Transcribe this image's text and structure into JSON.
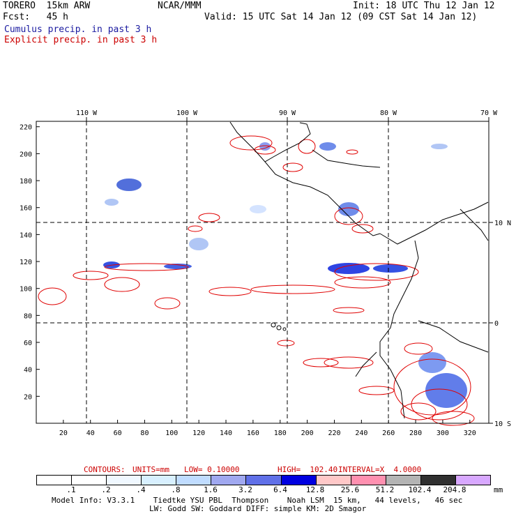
{
  "header": {
    "model": "TORERO  15km ARW",
    "center": "NCAR/MMM",
    "init": "Init: 18 UTC Thu 12 Jan 12",
    "fcst": "Fcst:   45 h",
    "valid": "Valid: 15 UTC Sat 14 Jan 12 (09 CST Sat 14 Jan 12)",
    "field1": "Cumulus precip. in past 3 h",
    "field2": "Explicit precip. in past 3 h"
  },
  "map": {
    "lon_labels": [
      "110 W",
      "100 W",
      "90 W",
      "80 W",
      "70 W"
    ],
    "lat_labels": [
      "10 N",
      "0",
      "10 S"
    ],
    "y_ticks": [
      "220",
      "200",
      "180",
      "160",
      "140",
      "120",
      "100",
      "80",
      "60",
      "40",
      "20"
    ],
    "x_ticks": [
      "20",
      "40",
      "60",
      "80",
      "100",
      "120",
      "140",
      "160",
      "180",
      "200",
      "220",
      "240",
      "260",
      "280",
      "300",
      "320"
    ],
    "x_range": [
      0,
      334
    ],
    "y_range": [
      0,
      224
    ]
  },
  "contours_line": {
    "label": "CONTOURS:",
    "units": "UNITS=mm",
    "low": "LOW= 0.10000",
    "high": "HIGH=  102.40",
    "interval": "INTERVAL=X  4.0000"
  },
  "colorbar": {
    "unit": "mm",
    "labels": [
      ".1",
      ".2",
      ".4",
      ".8",
      "1.6",
      "3.2",
      "6.4",
      "12.8",
      "25.6",
      "51.2",
      "102.4",
      "204.8"
    ],
    "colors": [
      "#ffffff",
      "#ffffff",
      "#f0f8ff",
      "#d8f0ff",
      "#c0dcff",
      "#a0a8f0",
      "#6070e8",
      "#0000e0",
      "#ffc8c8",
      "#ff90b0",
      "#b4b4b4",
      "#303030",
      "#d8a8ff"
    ]
  },
  "footer": {
    "line1": "Model Info: V3.3.1    Tiedtke YSU PBL  Thompson    Noah LSM  15 km,   44 levels,   46 sec",
    "line2": "LW: Godd SW: Goddard DIFF: simple KM: 2D Smagor"
  }
}
